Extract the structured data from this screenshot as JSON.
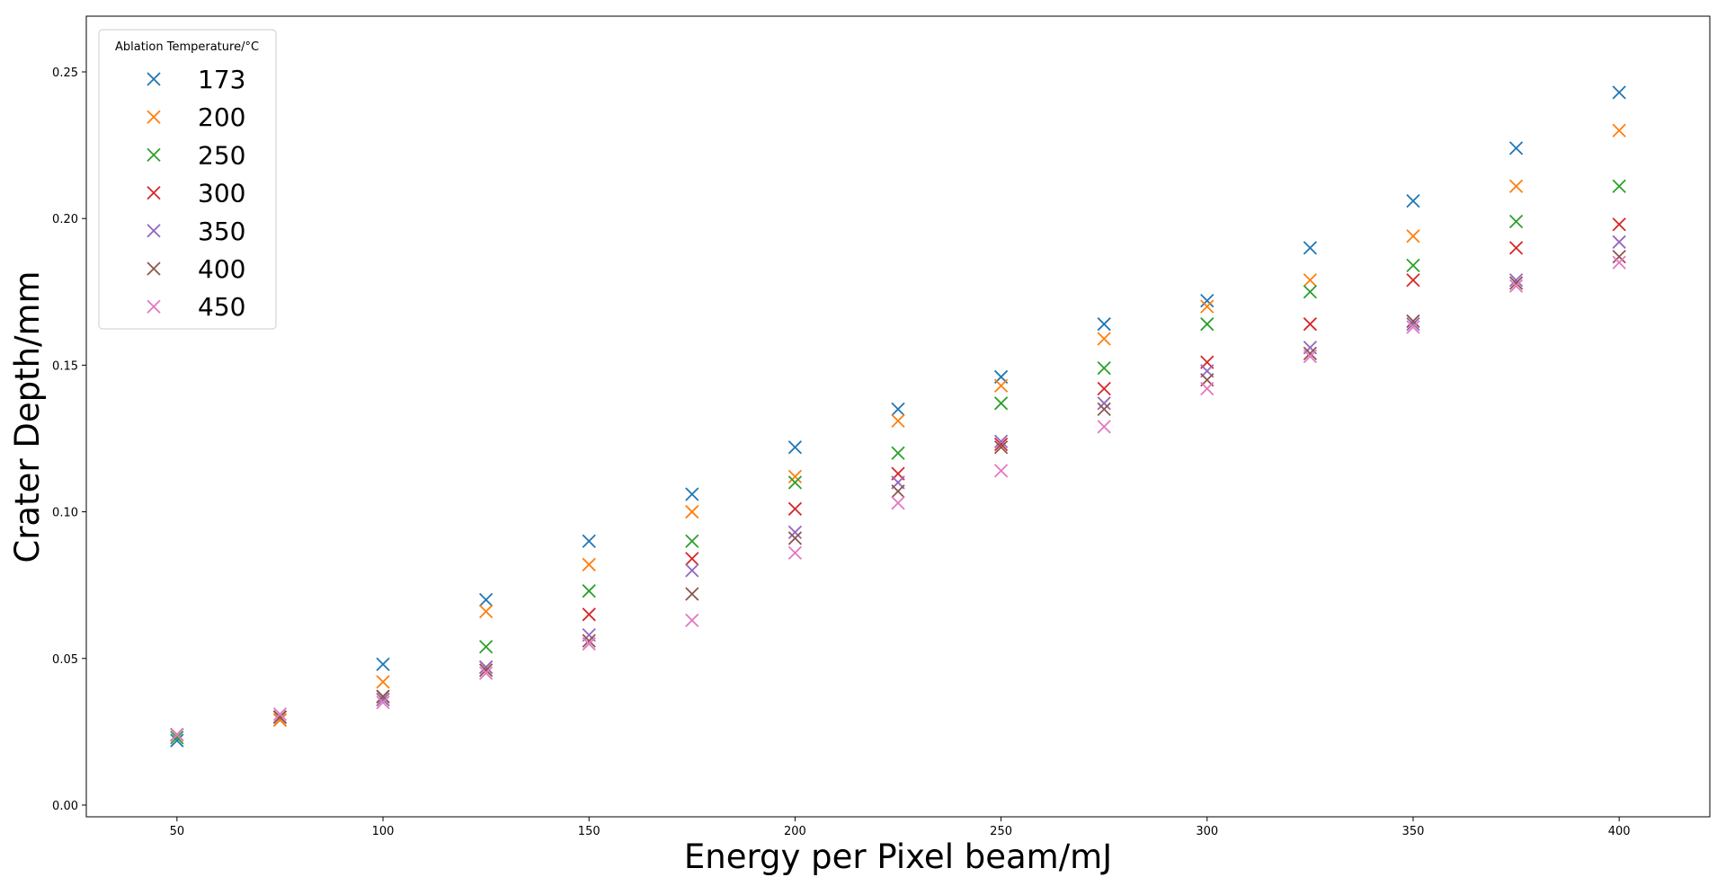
{
  "chart_data": {
    "type": "scatter",
    "title": "",
    "xlabel": "Energy per Pixel beam/mJ",
    "ylabel": "Crater Depth/mm",
    "xlim": [
      28,
      422
    ],
    "ylim": [
      -0.004,
      0.269
    ],
    "xticks": [
      50,
      100,
      150,
      200,
      250,
      300,
      350,
      400
    ],
    "xtick_labels": [
      "50",
      "100",
      "150",
      "200",
      "250",
      "300",
      "350",
      "400"
    ],
    "yticks": [
      0.0,
      0.05,
      0.1,
      0.15,
      0.2,
      0.25
    ],
    "ytick_labels": [
      "0.00",
      "0.05",
      "0.10",
      "0.15",
      "0.20",
      "0.25"
    ],
    "grid": false,
    "marker": "x",
    "legend": {
      "title": "Ablation Temperature/°C",
      "placement": "top-left"
    },
    "x": [
      50,
      75,
      100,
      125,
      150,
      175,
      200,
      225,
      250,
      275,
      300,
      325,
      350,
      375,
      400
    ],
    "series": [
      {
        "name": "173",
        "color": "#1f77b4",
        "values": [
          0.022,
          0.029,
          0.048,
          0.07,
          0.09,
          0.106,
          0.122,
          0.135,
          0.146,
          0.164,
          0.172,
          0.19,
          0.206,
          0.224,
          0.243
        ]
      },
      {
        "name": "200",
        "color": "#ff7f0e",
        "values": [
          0.024,
          0.029,
          0.042,
          0.066,
          0.082,
          0.1,
          0.112,
          0.131,
          0.143,
          0.159,
          0.17,
          0.179,
          0.194,
          0.211,
          0.23
        ]
      },
      {
        "name": "250",
        "color": "#2ca02c",
        "values": [
          0.023,
          0.03,
          0.036,
          0.054,
          0.073,
          0.09,
          0.11,
          0.12,
          0.137,
          0.149,
          0.164,
          0.175,
          0.184,
          0.199,
          0.211
        ]
      },
      {
        "name": "300",
        "color": "#d62728",
        "values": [
          0.024,
          0.03,
          0.037,
          0.047,
          0.065,
          0.084,
          0.101,
          0.113,
          0.123,
          0.142,
          0.151,
          0.164,
          0.179,
          0.19,
          0.198
        ]
      },
      {
        "name": "350",
        "color": "#9467bd",
        "values": [
          0.024,
          0.03,
          0.036,
          0.047,
          0.058,
          0.08,
          0.093,
          0.11,
          0.124,
          0.137,
          0.148,
          0.156,
          0.164,
          0.179,
          0.192
        ]
      },
      {
        "name": "400",
        "color": "#8c564b",
        "values": [
          0.024,
          0.03,
          0.037,
          0.046,
          0.056,
          0.072,
          0.091,
          0.107,
          0.122,
          0.135,
          0.145,
          0.154,
          0.165,
          0.178,
          0.187
        ]
      },
      {
        "name": "450",
        "color": "#e377c2",
        "values": [
          0.024,
          0.031,
          0.035,
          0.045,
          0.055,
          0.063,
          0.086,
          0.103,
          0.114,
          0.129,
          0.142,
          0.153,
          0.163,
          0.177,
          0.185
        ]
      }
    ]
  }
}
